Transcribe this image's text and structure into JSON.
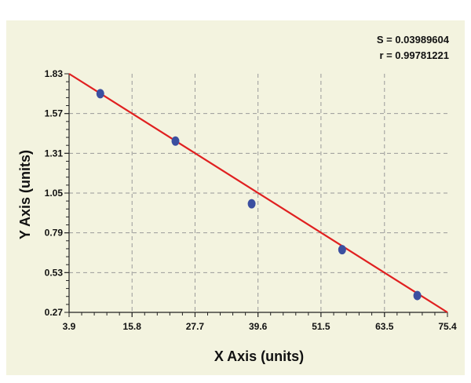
{
  "stats": {
    "s_text": "S = 0.03989604",
    "r_text": "r = 0.99781221"
  },
  "chart_data": {
    "type": "scatter",
    "xlabel": "X Axis (units)",
    "ylabel": "Y Axis (units)",
    "xlim": [
      3.9,
      75.4
    ],
    "ylim": [
      0.27,
      1.83
    ],
    "x_ticks": [
      "3.9",
      "15.8",
      "27.7",
      "39.6",
      "51.5",
      "63.5",
      "75.4"
    ],
    "y_ticks": [
      "0.27",
      "0.53",
      "0.79",
      "1.05",
      "1.31",
      "1.57",
      "1.83"
    ],
    "grid": true,
    "points": [
      {
        "x": 9.8,
        "y": 1.7
      },
      {
        "x": 24.0,
        "y": 1.39
      },
      {
        "x": 38.4,
        "y": 0.98
      },
      {
        "x": 55.5,
        "y": 0.68
      },
      {
        "x": 69.7,
        "y": 0.38
      }
    ],
    "fit_line": {
      "x": [
        3.9,
        75.4
      ],
      "y": [
        1.83,
        0.27
      ]
    },
    "colors": {
      "points": "#3b4fa0",
      "fit_line": "#e02020",
      "background": "#f3f3df"
    }
  }
}
